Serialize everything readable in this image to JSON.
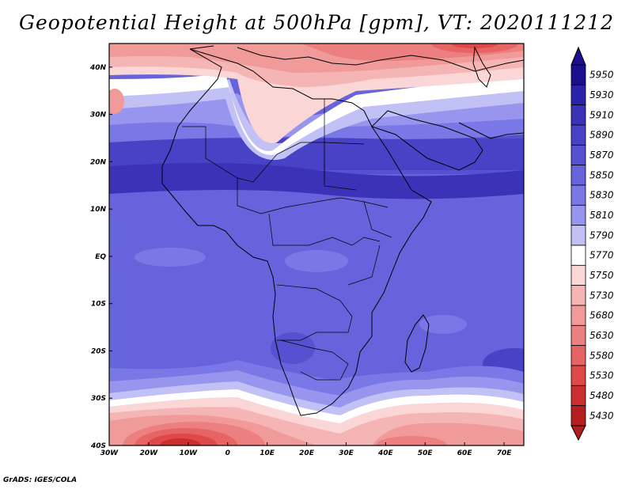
{
  "title": "Geopotential Height at 500hPa [gpm], VT: 2020111212",
  "footer": "GrADS: IGES/COLA",
  "map": {
    "variable": "Geopotential Height",
    "level": "500hPa",
    "units": "gpm",
    "valid_time": "2020111212",
    "lon_range": [
      -30,
      75
    ],
    "lat_range": [
      -40,
      45
    ],
    "lon_ticks": [
      {
        "value": -30,
        "label": "30W"
      },
      {
        "value": -20,
        "label": "20W"
      },
      {
        "value": -10,
        "label": "10W"
      },
      {
        "value": 0,
        "label": "0"
      },
      {
        "value": 10,
        "label": "10E"
      },
      {
        "value": 20,
        "label": "20E"
      },
      {
        "value": 30,
        "label": "30E"
      },
      {
        "value": 40,
        "label": "40E"
      },
      {
        "value": 50,
        "label": "50E"
      },
      {
        "value": 60,
        "label": "60E"
      },
      {
        "value": 70,
        "label": "70E"
      }
    ],
    "lat_ticks": [
      {
        "value": 40,
        "label": "40N"
      },
      {
        "value": 30,
        "label": "30N"
      },
      {
        "value": 20,
        "label": "20N"
      },
      {
        "value": 10,
        "label": "10N"
      },
      {
        "value": 0,
        "label": "EQ"
      },
      {
        "value": -10,
        "label": "10S"
      },
      {
        "value": -20,
        "label": "20S"
      },
      {
        "value": -30,
        "label": "30S"
      },
      {
        "value": -40,
        "label": "40S"
      }
    ]
  },
  "colorbar": {
    "levels": [
      {
        "label": "5950",
        "color": "#1b0f8f"
      },
      {
        "label": "5930",
        "color": "#2a22a8"
      },
      {
        "label": "5910",
        "color": "#3a33b8"
      },
      {
        "label": "5890",
        "color": "#4842c6"
      },
      {
        "label": "5870",
        "color": "#5551d0"
      },
      {
        "label": "5850",
        "color": "#6663dc"
      },
      {
        "label": "5830",
        "color": "#7a78e6"
      },
      {
        "label": "5810",
        "color": "#9795ee"
      },
      {
        "label": "5790",
        "color": "#c2c1f6"
      },
      {
        "label": "5770",
        "color": "#ffffff"
      },
      {
        "label": "5750",
        "color": "#fbd6d6"
      },
      {
        "label": "5730",
        "color": "#f6b5b5"
      },
      {
        "label": "5680",
        "color": "#f19a9a"
      },
      {
        "label": "5630",
        "color": "#ec7f7f"
      },
      {
        "label": "5580",
        "color": "#e66464"
      },
      {
        "label": "5530",
        "color": "#de4848"
      },
      {
        "label": "5480",
        "color": "#cc2f2f"
      },
      {
        "label": "5430",
        "color": "#b31e1e"
      }
    ]
  }
}
